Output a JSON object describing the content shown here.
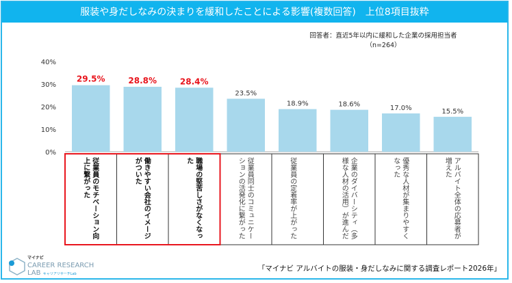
{
  "title": "服装や身だしなみの決まりを緩和したことによる影響(複数回答)　上位8項目抜粋",
  "respondents": "回答者：直近5年以内に緩和した企業の採用担当者",
  "n": "（n=264）",
  "source": "「マイナビ アルバイトの服装・身だしなみに関する調査レポート2026年」",
  "logo": {
    "top": "マイナビ",
    "main": "CAREER RESEARCH",
    "sub": "LAB",
    "tag": "キャリアリサーチLab"
  },
  "colors": {
    "bar": "#a8d8ec",
    "highlight": "#e8141c",
    "frame": "#29b6ea"
  },
  "chart_data": {
    "type": "bar",
    "title": "服装や身だしなみの決まりを緩和したことによる影響(複数回答)　上位8項目抜粋",
    "categories": [
      "従業員のモチベーション向上に繋がった",
      "働きやすい会社のイメージがついた",
      "職場の堅苦しさがなくなった",
      "従業員同士のコミュニケーションの活発化に繋がった",
      "従業員の定着率が上がった",
      "企業のダイバーシティ（多様な人材の活用）が進んだ",
      "優秀な人材が集まりやすくなった",
      "アルバイト全体の応募者が増えた"
    ],
    "values": [
      29.5,
      28.8,
      28.4,
      23.5,
      18.9,
      18.6,
      17.0,
      15.5
    ],
    "value_labels": [
      "29.5%",
      "28.8%",
      "28.4%",
      "23.5%",
      "18.9%",
      "18.6%",
      "17.0%",
      "15.5%"
    ],
    "highlighted": [
      0,
      1,
      2
    ],
    "yticks": [
      "0%",
      "10%",
      "20%",
      "30%",
      "40%"
    ],
    "ylim": [
      0,
      40
    ],
    "grid": false
  }
}
